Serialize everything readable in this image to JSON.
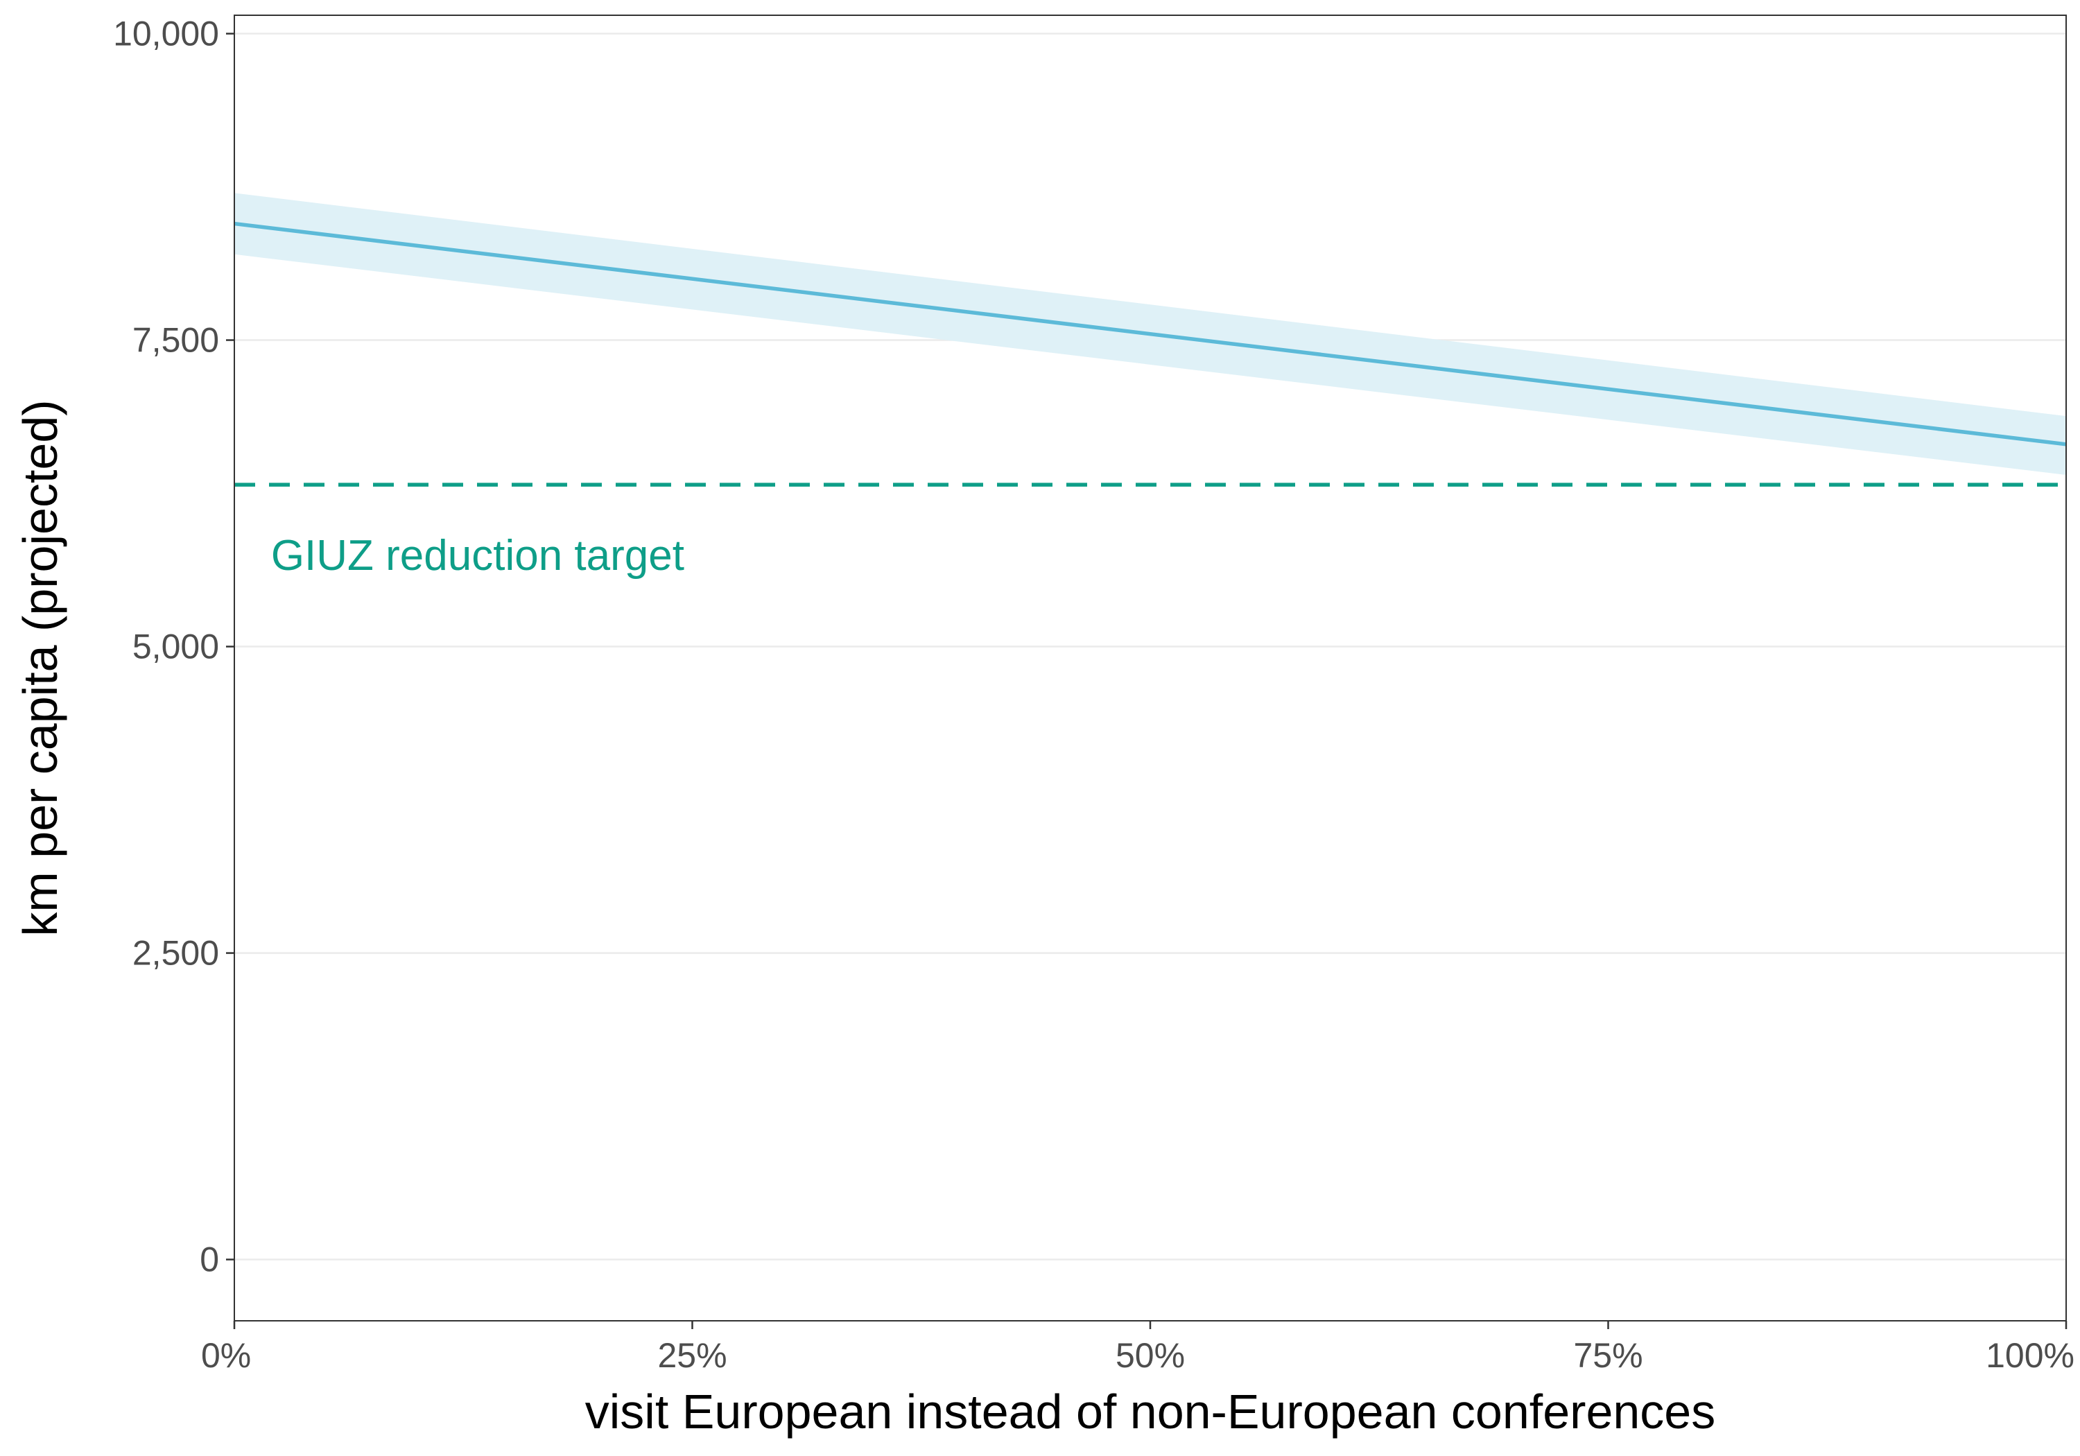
{
  "chart_data": {
    "type": "line",
    "title": "",
    "xlabel": "visit European instead of non-European conferences",
    "ylabel": "km per capita (projected)",
    "xlim": [
      0,
      100
    ],
    "ylim": [
      -500,
      10150
    ],
    "x_ticks": [
      {
        "value": 0,
        "label": "0%"
      },
      {
        "value": 25,
        "label": "25%"
      },
      {
        "value": 50,
        "label": "50%"
      },
      {
        "value": 75,
        "label": "75%"
      },
      {
        "value": 100,
        "label": "100%"
      }
    ],
    "y_ticks": [
      {
        "value": 0,
        "label": "0"
      },
      {
        "value": 2500,
        "label": "2,500"
      },
      {
        "value": 5000,
        "label": "5,000"
      },
      {
        "value": 7500,
        "label": "7,500"
      },
      {
        "value": 10000,
        "label": "10,000"
      }
    ],
    "grid": "horizontal major",
    "series": [
      {
        "x": [
          0,
          100
        ],
        "y": [
          8450,
          6650
        ],
        "lower": [
          8200,
          6400
        ],
        "upper": [
          8700,
          6880
        ],
        "color": "#5cbad8",
        "band_color": "#dff1f7"
      }
    ],
    "reference_lines": [
      {
        "y": 6320,
        "style": "dashed",
        "color": "#0e9e88",
        "label": "GIUZ reduction target",
        "label_x": 2,
        "label_y": 5750
      }
    ]
  }
}
